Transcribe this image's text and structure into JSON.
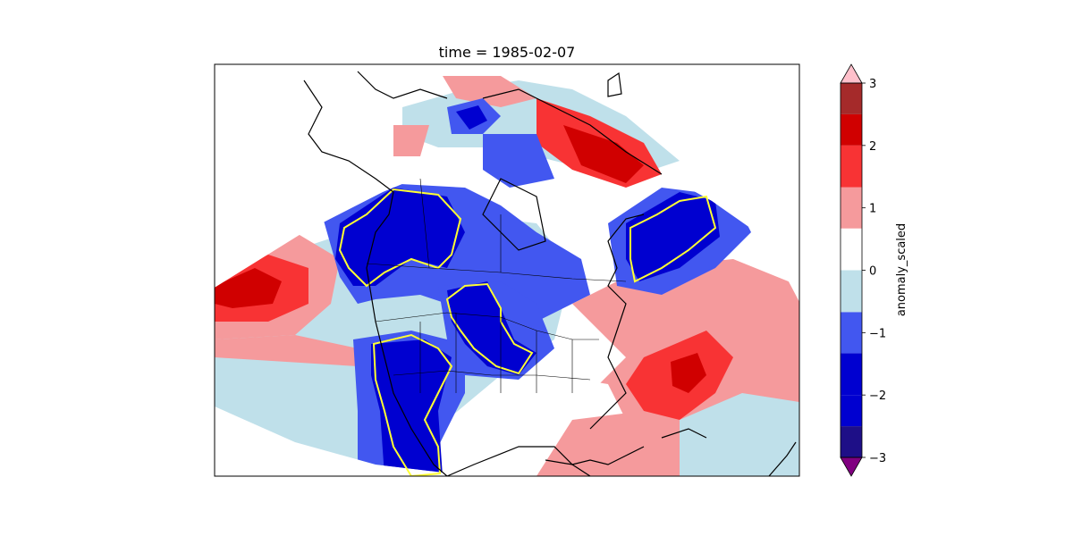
{
  "title": "time = 1985-02-07",
  "colorbar": {
    "label": "anomaly_scaled",
    "ticks": [
      "3",
      "2",
      "1",
      "0",
      "−1",
      "−2",
      "−3"
    ],
    "levels": [
      {
        "from": -3,
        "to": -2.5,
        "color": "#1e0f87"
      },
      {
        "from": -2.5,
        "to": -2,
        "color": "#0000d0"
      },
      {
        "from": -2,
        "to": -1.33,
        "color": "#0000d0"
      },
      {
        "from": -1.33,
        "to": -0.67,
        "color": "#4257f0"
      },
      {
        "from": -0.67,
        "to": 0,
        "color": "#bfe0ea"
      },
      {
        "from": 0,
        "to": 0.67,
        "color": "#ffffff"
      },
      {
        "from": 0.67,
        "to": 1.33,
        "color": "#f59a9c"
      },
      {
        "from": 1.33,
        "to": 2,
        "color": "#f83334"
      },
      {
        "from": 2,
        "to": 2.5,
        "color": "#d00000"
      },
      {
        "from": 2.5,
        "to": 3,
        "color": "#a52a2a"
      }
    ],
    "under_color": "#800080",
    "over_color": "#ffc0cb"
  },
  "map": {
    "contour_color": "#ffff33",
    "coast_color": "#000000"
  }
}
